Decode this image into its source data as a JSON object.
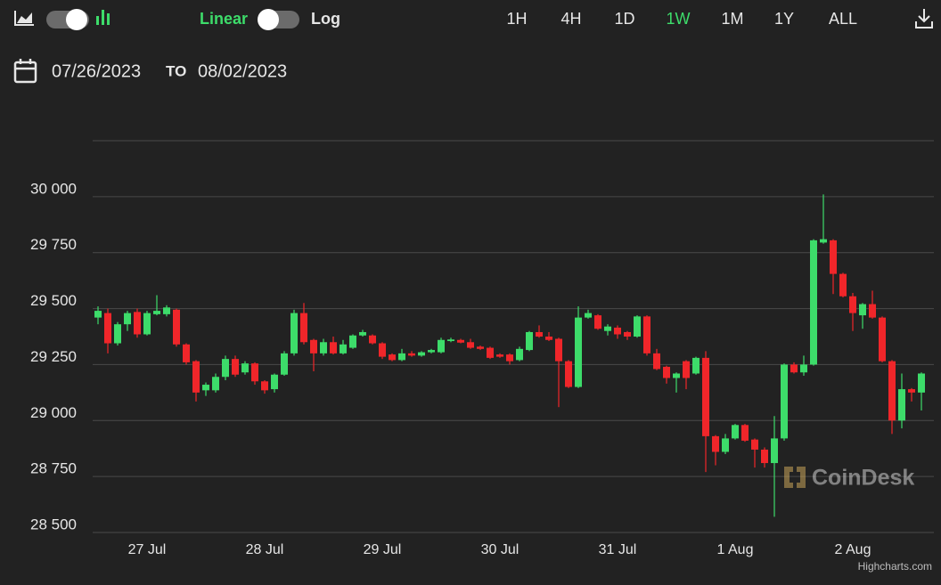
{
  "toolbar": {
    "scale_options": [
      "Linear",
      "Log"
    ],
    "active_scale_color": "#3ddc6a",
    "ranges": [
      "1H",
      "4H",
      "1D",
      "1W",
      "1M",
      "1Y",
      "ALL"
    ],
    "active_range": "1W"
  },
  "date_range": {
    "from": "07/26/2023",
    "separator": "TO",
    "to": "08/02/2023"
  },
  "watermark": "CoinDesk",
  "credits": "Highcharts.com",
  "chart_data": {
    "type": "candlestick",
    "categories": [
      null,
      null,
      null,
      null,
      null,
      "27 Jul",
      null,
      null,
      null,
      null,
      null,
      null,
      null,
      null,
      null,
      null,
      null,
      "28 Jul",
      null,
      null,
      null,
      null,
      null,
      null,
      null,
      null,
      null,
      null,
      null,
      "29 Jul",
      null,
      null,
      null,
      null,
      null,
      null,
      null,
      null,
      null,
      null,
      null,
      "30 Jul",
      null,
      null,
      null,
      null,
      null,
      null,
      null,
      null,
      null,
      null,
      null,
      "31 Jul",
      null,
      null,
      null,
      null,
      null,
      null,
      null,
      null,
      null,
      null,
      null,
      "1 Aug",
      null,
      null,
      null,
      null,
      null,
      null,
      null,
      null,
      null,
      null,
      null,
      "2 Aug",
      null,
      null,
      null,
      null,
      null,
      null,
      null
    ],
    "open": [
      29460,
      29480,
      29345,
      29430,
      29485,
      29385,
      29475,
      29475,
      29495,
      29340,
      29265,
      29135,
      29135,
      29195,
      29275,
      29215,
      29255,
      29175,
      29140,
      29205,
      29300,
      29480,
      29360,
      29300,
      29350,
      29300,
      29325,
      29380,
      29380,
      29345,
      29295,
      29270,
      29300,
      29290,
      29305,
      29305,
      29355,
      29360,
      29350,
      29330,
      29325,
      29295,
      29295,
      29270,
      29315,
      29395,
      29375,
      29365,
      29265,
      29150,
      29460,
      29470,
      29400,
      29415,
      29395,
      29375,
      29465,
      29300,
      29240,
      29190,
      29265,
      29210,
      29280,
      28930,
      28860,
      28920,
      28980,
      28915,
      28870,
      28810,
      28920,
      29250,
      29215,
      29250,
      29795,
      29805,
      29655,
      29555,
      29470,
      29520,
      29460,
      29265,
      29000,
      29140,
      29125
    ],
    "high": [
      29510,
      29500,
      29440,
      29490,
      29500,
      29490,
      29560,
      29515,
      29500,
      29345,
      29270,
      29170,
      29210,
      29290,
      29290,
      29265,
      29260,
      29180,
      29210,
      29310,
      29495,
      29525,
      29365,
      29365,
      29375,
      29360,
      29385,
      29405,
      29385,
      29350,
      29300,
      29320,
      29310,
      29310,
      29320,
      29370,
      29370,
      29365,
      29365,
      29335,
      29330,
      29300,
      29300,
      29330,
      29400,
      29425,
      29395,
      29370,
      29270,
      29510,
      29495,
      29475,
      29430,
      29425,
      29400,
      29470,
      29470,
      29320,
      29245,
      29215,
      29270,
      29285,
      29310,
      28935,
      28940,
      28985,
      28985,
      28920,
      28880,
      29020,
      29255,
      29260,
      29290,
      29810,
      30010,
      29810,
      29660,
      29570,
      29525,
      29580,
      29465,
      29270,
      29210,
      29145,
      29215
    ],
    "low": [
      29430,
      29300,
      29335,
      29400,
      29370,
      29380,
      29470,
      29465,
      29330,
      29250,
      29085,
      29110,
      29125,
      29180,
      29195,
      29205,
      29160,
      29120,
      29125,
      29200,
      29290,
      29340,
      29220,
      29290,
      29295,
      29295,
      29320,
      29375,
      29340,
      29275,
      29265,
      29265,
      29285,
      29285,
      29300,
      29300,
      29350,
      29345,
      29320,
      29315,
      29275,
      29280,
      29250,
      29265,
      29310,
      29370,
      29355,
      29060,
      29145,
      29145,
      29455,
      29405,
      29380,
      29365,
      29360,
      29370,
      29290,
      29225,
      29165,
      29125,
      29140,
      29205,
      28770,
      28800,
      28850,
      28915,
      28905,
      28790,
      28790,
      28570,
      28910,
      29210,
      29200,
      29245,
      29790,
      29565,
      29550,
      29400,
      29410,
      29455,
      29260,
      28940,
      28965,
      29085,
      29045
    ],
    "close": [
      29490,
      29345,
      29430,
      29480,
      29385,
      29480,
      29490,
      29505,
      29340,
      29260,
      29125,
      29160,
      29195,
      29275,
      29205,
      29255,
      29175,
      29135,
      29205,
      29300,
      29480,
      29350,
      29300,
      29350,
      29300,
      29340,
      29380,
      29395,
      29345,
      29285,
      29270,
      29300,
      29290,
      29305,
      29315,
      29360,
      29362,
      29348,
      29325,
      29320,
      29280,
      29285,
      29265,
      29320,
      29395,
      29375,
      29360,
      29265,
      29150,
      29460,
      29480,
      29410,
      29420,
      29385,
      29375,
      29465,
      29300,
      29230,
      29190,
      29210,
      29190,
      29280,
      28930,
      28860,
      28920,
      28980,
      28910,
      28870,
      28810,
      28920,
      29250,
      29215,
      29250,
      29805,
      29810,
      29655,
      29555,
      29480,
      29520,
      29460,
      29265,
      29000,
      29140,
      29125,
      29210
    ],
    "up_color": "#3ddc6a",
    "down_color": "#f0262a",
    "ylim": [
      28500,
      30250
    ],
    "yticks": [
      {
        "value": 28500,
        "label": "28 500"
      },
      {
        "value": 28750,
        "label": "28 750"
      },
      {
        "value": 29000,
        "label": "29 000"
      },
      {
        "value": 29250,
        "label": "29 250"
      },
      {
        "value": 29500,
        "label": "29 500"
      },
      {
        "value": 29750,
        "label": "29 750"
      },
      {
        "value": 30000,
        "label": "30 000"
      }
    ],
    "grid": true
  }
}
